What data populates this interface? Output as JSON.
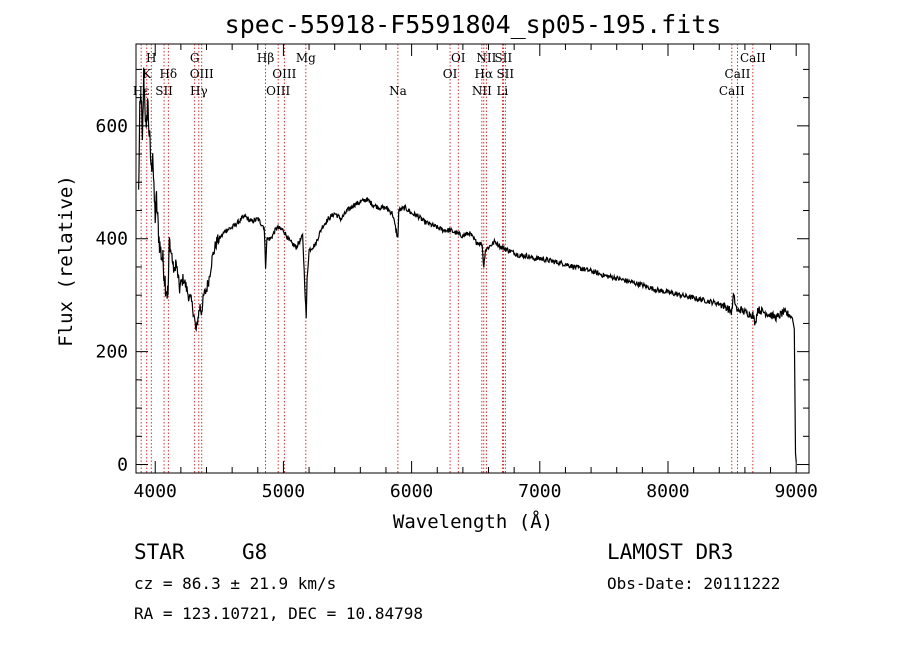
{
  "chart_data": {
    "type": "line",
    "title": "spec-55918-F5591804_sp05-195.fits",
    "xlabel": "Wavelength (Å)",
    "ylabel": "Flux (relative)",
    "xlim": [
      3850,
      9100
    ],
    "ylim": [
      -15,
      745
    ],
    "x_ticks": [
      4000,
      5000,
      6000,
      7000,
      8000,
      9000
    ],
    "y_ticks": [
      0,
      200,
      400,
      600
    ],
    "grid": false,
    "series": [
      {
        "name": "spectrum",
        "x": [
          3870,
          3880,
          3890,
          3900,
          3910,
          3920,
          3930,
          3940,
          3950,
          3960,
          3970,
          3980,
          3990,
          4000,
          4010,
          4020,
          4030,
          4040,
          4050,
          4060,
          4070,
          4080,
          4090,
          4100,
          4110,
          4120,
          4130,
          4140,
          4150,
          4160,
          4170,
          4180,
          4190,
          4200,
          4220,
          4240,
          4260,
          4280,
          4300,
          4310,
          4320,
          4330,
          4340,
          4350,
          4360,
          4370,
          4380,
          4400,
          4420,
          4440,
          4460,
          4480,
          4500,
          4550,
          4600,
          4650,
          4700,
          4750,
          4800,
          4850,
          4861,
          4870,
          4900,
          4950,
          5000,
          5050,
          5100,
          5150,
          5170,
          5178,
          5185,
          5200,
          5250,
          5300,
          5350,
          5400,
          5450,
          5500,
          5550,
          5600,
          5650,
          5700,
          5750,
          5800,
          5850,
          5893,
          5900,
          5950,
          6000,
          6050,
          6100,
          6150,
          6200,
          6250,
          6300,
          6350,
          6400,
          6450,
          6500,
          6550,
          6563,
          6575,
          6600,
          6650,
          6700,
          6750,
          6800,
          6850,
          6900,
          6950,
          7000,
          7100,
          7200,
          7300,
          7400,
          7500,
          7600,
          7700,
          7800,
          7900,
          8000,
          8100,
          8200,
          8300,
          8400,
          8450,
          8498,
          8510,
          8542,
          8560,
          8600,
          8662,
          8680,
          8700,
          8750,
          8800,
          8850,
          8900,
          8950,
          8970,
          8985,
          8995,
          9000
        ],
        "values": [
          480,
          620,
          660,
          560,
          690,
          640,
          580,
          650,
          600,
          560,
          520,
          560,
          480,
          440,
          470,
          430,
          400,
          380,
          370,
          360,
          340,
          320,
          310,
          300,
          400,
          380,
          370,
          350,
          340,
          360,
          345,
          330,
          310,
          320,
          330,
          315,
          300,
          290,
          270,
          250,
          235,
          255,
          270,
          280,
          270,
          285,
          300,
          310,
          330,
          360,
          380,
          395,
          400,
          415,
          420,
          430,
          440,
          430,
          435,
          420,
          350,
          400,
          400,
          420,
          415,
          395,
          385,
          405,
          300,
          260,
          330,
          380,
          390,
          420,
          435,
          445,
          435,
          450,
          460,
          465,
          470,
          460,
          455,
          455,
          445,
          400,
          450,
          455,
          445,
          440,
          430,
          425,
          420,
          415,
          415,
          410,
          405,
          410,
          395,
          390,
          350,
          380,
          385,
          395,
          385,
          380,
          375,
          370,
          370,
          365,
          365,
          360,
          355,
          348,
          343,
          335,
          330,
          324,
          318,
          310,
          305,
          300,
          295,
          290,
          285,
          280,
          270,
          300,
          270,
          275,
          270,
          265,
          250,
          275,
          270,
          265,
          260,
          270,
          265,
          260,
          240,
          20,
          5
        ]
      }
    ],
    "spectral_lines": [
      {
        "label": "K",
        "wavelength": 3934,
        "row": 2
      },
      {
        "label": "H",
        "wavelength": 3969,
        "row": 1
      },
      {
        "label": "Hε",
        "wavelength": 3890,
        "row": 3
      },
      {
        "label": "SII",
        "wavelength": 4069,
        "row": 3
      },
      {
        "label": "Hδ",
        "wavelength": 4102,
        "row": 2
      },
      {
        "label": "G",
        "wavelength": 4308,
        "row": 1
      },
      {
        "label": "OIII",
        "wavelength": 4363,
        "row": 2
      },
      {
        "label": "Hγ",
        "wavelength": 4340,
        "row": 3
      },
      {
        "label": "Hβ",
        "wavelength": 4861,
        "row": 1
      },
      {
        "label": "OIII",
        "wavelength": 5007,
        "row": 2
      },
      {
        "label": "OIII",
        "wavelength": 4959,
        "row": 3
      },
      {
        "label": "Mg",
        "wavelength": 5175,
        "row": 1
      },
      {
        "label": "Na",
        "wavelength": 5893,
        "row": 3
      },
      {
        "label": "OI",
        "wavelength": 6364,
        "row": 1
      },
      {
        "label": "OI",
        "wavelength": 6300,
        "row": 2
      },
      {
        "label": "NII",
        "wavelength": 6583,
        "row": 1
      },
      {
        "label": "SII",
        "wavelength": 6716,
        "row": 1
      },
      {
        "label": "Hα",
        "wavelength": 6563,
        "row": 2
      },
      {
        "label": "SII",
        "wavelength": 6731,
        "row": 2
      },
      {
        "label": "NII",
        "wavelength": 6548,
        "row": 3
      },
      {
        "label": "Li",
        "wavelength": 6708,
        "row": 3
      },
      {
        "label": "CaII",
        "wavelength": 8662,
        "row": 1
      },
      {
        "label": "CaII",
        "wavelength": 8542,
        "row": 2
      },
      {
        "label": "CaII",
        "wavelength": 8498,
        "row": 3
      }
    ]
  },
  "info": {
    "object_class": "STAR",
    "subclass": "G8",
    "survey": "LAMOST DR3",
    "redshift": "cz = 86.3 ± 21.9 km/s",
    "obs_date": "Obs-Date: 20111222",
    "coordinates": "RA = 123.10721, DEC =  10.84798"
  },
  "colors": {
    "spectrum": "#000000",
    "line_markers": "#cc0000",
    "axes": "#000000",
    "background": "#ffffff"
  }
}
